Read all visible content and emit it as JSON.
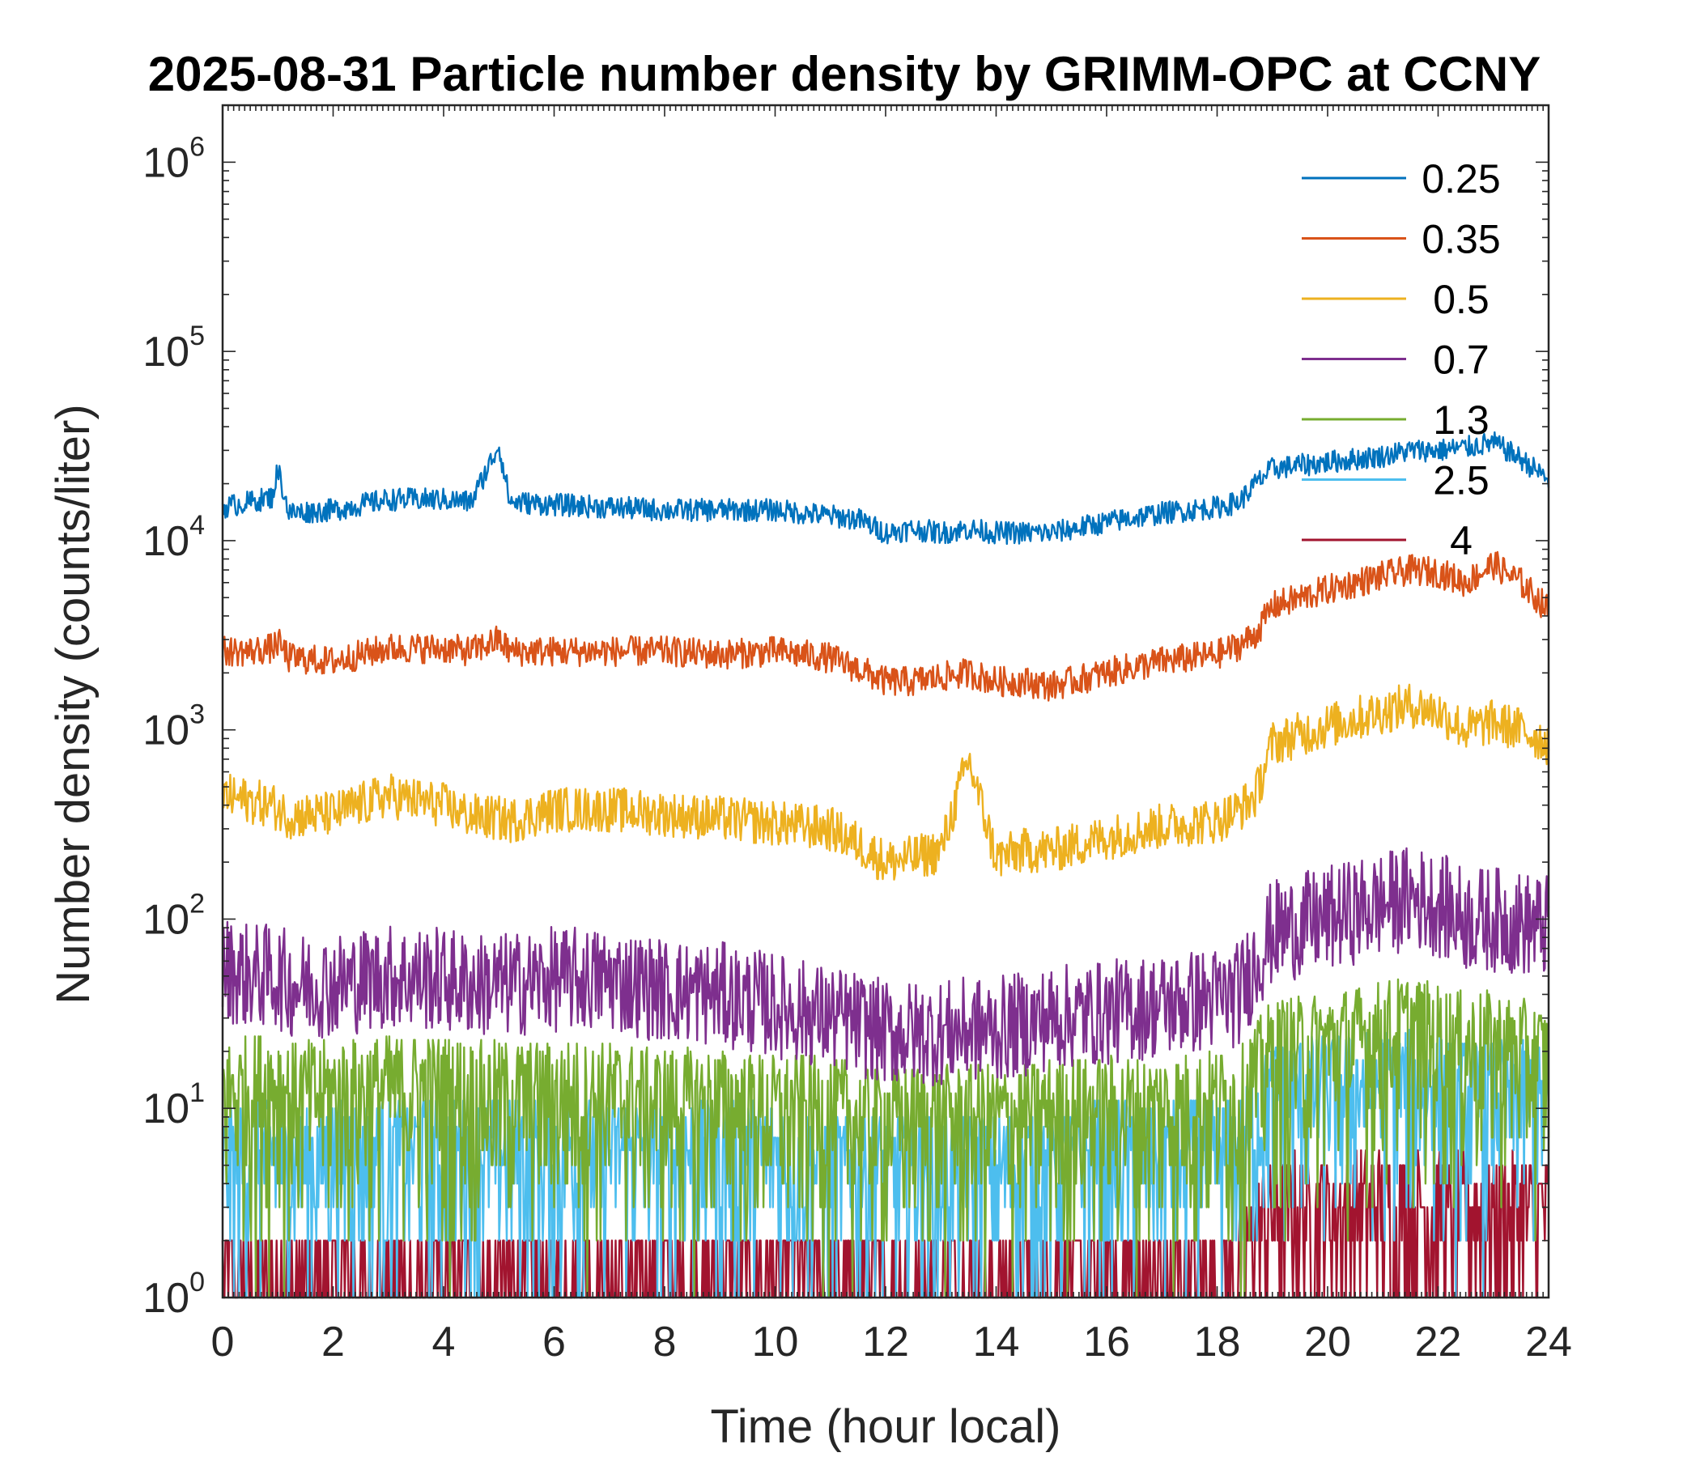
{
  "chart_data": {
    "type": "line",
    "title": "2025-08-31 Particle number density by GRIMM-OPC at CCNY",
    "xlabel": "Time (hour local)",
    "ylabel": "Number density (counts/liter)",
    "xlim": [
      0,
      24
    ],
    "ylim": [
      1,
      2000000
    ],
    "yscale": "log",
    "xticks": [
      0,
      2,
      4,
      6,
      8,
      10,
      12,
      14,
      16,
      18,
      20,
      22,
      24
    ],
    "xtick_labels": [
      "0",
      "2",
      "4",
      "6",
      "8",
      "10",
      "12",
      "14",
      "16",
      "18",
      "20",
      "22",
      "24"
    ],
    "yticks": [
      1,
      10,
      100,
      1000,
      10000,
      100000,
      1000000
    ],
    "ytick_base": "10",
    "ytick_exponents": [
      "0",
      "1",
      "2",
      "3",
      "4",
      "5",
      "6"
    ],
    "grid": false,
    "legend_position": "top-right",
    "x": [
      0,
      0.5,
      0.9,
      1.0,
      1.2,
      2,
      3,
      4,
      4.5,
      5.0,
      5.2,
      6,
      7,
      8,
      9,
      10,
      11,
      11.5,
      12,
      12.5,
      13,
      13.5,
      14,
      14.5,
      15,
      16,
      17,
      18,
      18.4,
      18.7,
      19,
      20,
      21,
      21.5,
      22,
      22.5,
      23,
      23.5,
      24
    ],
    "series": [
      {
        "name": "0.25",
        "color": "#0072BD",
        "values": [
          15000,
          16000,
          17000,
          24000,
          14000,
          14500,
          16500,
          16500,
          16000,
          32000,
          16000,
          15500,
          15000,
          14500,
          14500,
          14500,
          13500,
          13000,
          11000,
          11500,
          11000,
          11500,
          11000,
          11000,
          11000,
          12500,
          14000,
          15000,
          16000,
          20000,
          24000,
          26000,
          28000,
          30000,
          30000,
          31000,
          33000,
          27000,
          21000
        ]
      },
      {
        "name": "0.35",
        "color": "#D95319",
        "values": [
          2600,
          2600,
          2700,
          2900,
          2400,
          2300,
          2700,
          2700,
          2600,
          3000,
          2600,
          2600,
          2600,
          2600,
          2500,
          2600,
          2400,
          2100,
          1800,
          1800,
          1900,
          2000,
          1800,
          1800,
          1700,
          2000,
          2300,
          2500,
          2800,
          3200,
          4500,
          5500,
          6500,
          7000,
          6800,
          6000,
          7500,
          6000,
          4300
        ]
      },
      {
        "name": "0.5",
        "color": "#EDB120",
        "values": [
          450,
          420,
          400,
          380,
          350,
          360,
          450,
          400,
          350,
          340,
          330,
          380,
          380,
          360,
          340,
          320,
          300,
          250,
          200,
          210,
          230,
          700,
          210,
          230,
          230,
          270,
          310,
          330,
          380,
          450,
          850,
          1050,
          1250,
          1350,
          1250,
          1000,
          1100,
          1000,
          850
        ]
      },
      {
        "name": "0.7",
        "color": "#7E2F8E",
        "values": [
          55,
          50,
          50,
          50,
          45,
          45,
          50,
          48,
          45,
          45,
          45,
          48,
          48,
          42,
          40,
          35,
          30,
          28,
          25,
          25,
          25,
          26,
          26,
          28,
          30,
          32,
          35,
          38,
          40,
          60,
          85,
          100,
          120,
          130,
          120,
          100,
          100,
          95,
          90
        ]
      },
      {
        "name": "1.3",
        "color": "#77AC30",
        "values": [
          12,
          13,
          14,
          14,
          12,
          12,
          13,
          13,
          12,
          12,
          12,
          12,
          12,
          11,
          11,
          10,
          10,
          9,
          9,
          9,
          9,
          9,
          9,
          9,
          10,
          10,
          10,
          11,
          11,
          15,
          20,
          22,
          25,
          27,
          24,
          22,
          22,
          20,
          18
        ]
      },
      {
        "name": "2.5",
        "color": "#4DBEEE",
        "values": [
          5,
          6,
          6,
          6,
          5,
          6,
          6,
          6,
          6,
          6,
          6,
          6,
          6,
          6,
          6,
          6,
          5,
          5,
          5,
          5,
          5,
          5,
          5,
          5,
          5,
          6,
          6,
          6,
          6,
          9,
          12,
          13,
          14,
          14,
          13,
          12,
          12,
          12,
          11
        ]
      },
      {
        "name": "4",
        "color": "#A2142F",
        "values": [
          1.2,
          1.2,
          1.2,
          1.2,
          1.2,
          1.2,
          1.2,
          1.2,
          1.2,
          1.2,
          1.2,
          1.2,
          1.3,
          1.3,
          1.3,
          1.3,
          1.3,
          1.3,
          1.3,
          1.2,
          1.2,
          1.2,
          1.2,
          1.2,
          1.3,
          1.3,
          1.3,
          1.3,
          1.4,
          2.5,
          3,
          3,
          3.2,
          3.2,
          3,
          3,
          3,
          3,
          3
        ]
      }
    ]
  }
}
